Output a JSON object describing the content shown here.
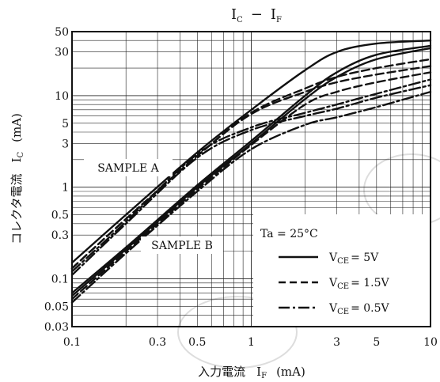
{
  "chart_data": {
    "type": "line",
    "title_main": "I",
    "title_main_sub": "C",
    "title_sep": "−",
    "title_second": "I",
    "title_second_sub": "F",
    "xlabel_jp": "入力電流",
    "xlabel_sym": "I",
    "xlabel_sub": "F",
    "xlabel_unit": "(mA)",
    "ylabel_jp": "コレクタ電流",
    "ylabel_sym": "I",
    "ylabel_sub": "C",
    "ylabel_unit": "(mA)",
    "x_scale": "log",
    "y_scale": "log",
    "xlim": [
      0.1,
      10
    ],
    "ylim": [
      0.03,
      50
    ],
    "x_ticks": [
      0.1,
      0.3,
      0.5,
      1,
      3,
      5,
      10
    ],
    "x_tick_labels": [
      "0.1",
      "0.3",
      "0.5",
      "1",
      "3",
      "5",
      "10"
    ],
    "y_ticks": [
      0.03,
      0.05,
      0.1,
      0.3,
      0.5,
      1,
      3,
      5,
      10,
      30,
      50
    ],
    "y_tick_labels": [
      "0.03",
      "0.05",
      "0.1",
      "0.3",
      "0.5",
      "1",
      "3",
      "5",
      "10",
      "30",
      "50"
    ],
    "grid": true,
    "annotations": [
      "SAMPLE A",
      "SAMPLE B"
    ],
    "legend": {
      "placement": "bottom-right",
      "condition": "Ta = 25°C",
      "entries": [
        {
          "style": "solid",
          "label_prefix": "V",
          "label_sub": "CE",
          "label_value": "= 5V"
        },
        {
          "style": "dashed",
          "label_prefix": "V",
          "label_sub": "CE",
          "label_value": "= 1.5V"
        },
        {
          "style": "dashdot",
          "label_prefix": "V",
          "label_sub": "CE",
          "label_value": "= 0.5V"
        }
      ]
    },
    "series": [
      {
        "group": "A",
        "style": "solid",
        "x": [
          0.1,
          0.2,
          0.5,
          1,
          2,
          3,
          5,
          10
        ],
        "y": [
          0.15,
          0.5,
          2.4,
          7,
          19,
          30,
          37,
          40
        ]
      },
      {
        "group": "A",
        "style": "dashed",
        "x": [
          0.1,
          0.2,
          0.5,
          1,
          2,
          3,
          5,
          10
        ],
        "y": [
          0.13,
          0.45,
          2.2,
          6.5,
          12,
          16,
          20,
          25
        ]
      },
      {
        "group": "A",
        "style": "dashed",
        "x": [
          0.1,
          0.2,
          0.5,
          1,
          2,
          3,
          5,
          10
        ],
        "y": [
          0.13,
          0.45,
          2.2,
          6.3,
          11,
          14,
          17,
          21
        ]
      },
      {
        "group": "A",
        "style": "dashdot",
        "x": [
          0.1,
          0.2,
          0.5,
          1,
          2,
          3,
          5,
          10
        ],
        "y": [
          0.12,
          0.42,
          2.3,
          4.5,
          6.5,
          8,
          10.5,
          15
        ]
      },
      {
        "group": "A",
        "style": "dashdot",
        "x": [
          0.1,
          0.2,
          0.5,
          1,
          2,
          3,
          5,
          10
        ],
        "y": [
          0.11,
          0.4,
          2.1,
          4.2,
          6,
          7.2,
          9.5,
          13
        ]
      },
      {
        "group": "B",
        "style": "solid",
        "x": [
          0.1,
          0.2,
          0.5,
          1,
          2,
          3,
          5,
          10
        ],
        "y": [
          0.07,
          0.22,
          1.05,
          3.2,
          10,
          18,
          28,
          35
        ]
      },
      {
        "group": "B",
        "style": "solid",
        "x": [
          0.1,
          0.2,
          0.5,
          1,
          2,
          3,
          5,
          10
        ],
        "y": [
          0.065,
          0.21,
          1,
          3,
          9.2,
          16,
          25,
          33
        ]
      },
      {
        "group": "B",
        "style": "dashed",
        "x": [
          0.1,
          0.2,
          0.5,
          1,
          2,
          3,
          5,
          10
        ],
        "y": [
          0.06,
          0.2,
          0.95,
          2.9,
          8,
          11,
          14,
          18
        ]
      },
      {
        "group": "B",
        "style": "dashdot",
        "x": [
          0.1,
          0.2,
          0.5,
          1,
          2,
          3,
          5,
          10
        ],
        "y": [
          0.055,
          0.19,
          0.9,
          2.6,
          4.8,
          5.8,
          7.5,
          11
        ]
      }
    ]
  }
}
